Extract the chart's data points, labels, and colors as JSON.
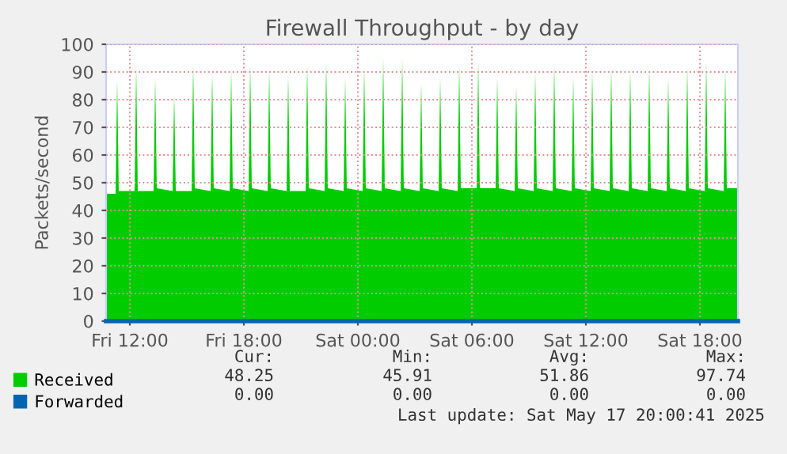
{
  "chart_data": {
    "type": "area",
    "title": "Firewall Throughput - by day",
    "ylabel": "Packets/second",
    "xlim": [
      "2025-05-16T10:45",
      "2025-05-17T20:00"
    ],
    "xticks": [
      {
        "value": "2025-05-16T12:00",
        "label": "Fri 12:00"
      },
      {
        "value": "2025-05-16T18:00",
        "label": "Fri 18:00"
      },
      {
        "value": "2025-05-17T00:00",
        "label": "Sat 00:00"
      },
      {
        "value": "2025-05-17T06:00",
        "label": "Sat 06:00"
      },
      {
        "value": "2025-05-17T12:00",
        "label": "Sat 12:00"
      },
      {
        "value": "2025-05-17T18:00",
        "label": "Sat 18:00"
      }
    ],
    "ylim": [
      0,
      100
    ],
    "yticks": [
      0,
      10,
      20,
      30,
      40,
      50,
      60,
      70,
      80,
      90,
      100
    ],
    "grid": true,
    "legend": "bottom left",
    "series": [
      {
        "name": "Received",
        "color": "#00cc00",
        "x": [
          "2025-05-16T10:45",
          "2025-05-16T11:15",
          "2025-05-16T11:20",
          "2025-05-16T11:25",
          "2025-05-16T12:15",
          "2025-05-16T12:20",
          "2025-05-16T12:25",
          "2025-05-16T13:15",
          "2025-05-16T13:20",
          "2025-05-16T13:25",
          "2025-05-16T14:15",
          "2025-05-16T14:20",
          "2025-05-16T14:25",
          "2025-05-16T15:15",
          "2025-05-16T15:20",
          "2025-05-16T15:25",
          "2025-05-16T16:15",
          "2025-05-16T16:20",
          "2025-05-16T16:25",
          "2025-05-16T17:15",
          "2025-05-16T17:20",
          "2025-05-16T17:25",
          "2025-05-16T18:15",
          "2025-05-16T18:20",
          "2025-05-16T18:25",
          "2025-05-16T19:15",
          "2025-05-16T19:20",
          "2025-05-16T19:25",
          "2025-05-16T20:15",
          "2025-05-16T20:20",
          "2025-05-16T20:25",
          "2025-05-16T21:15",
          "2025-05-16T21:20",
          "2025-05-16T21:25",
          "2025-05-16T22:15",
          "2025-05-16T22:20",
          "2025-05-16T22:25",
          "2025-05-16T23:15",
          "2025-05-16T23:20",
          "2025-05-16T23:25",
          "2025-05-17T00:15",
          "2025-05-17T00:20",
          "2025-05-17T00:25",
          "2025-05-17T01:15",
          "2025-05-17T01:20",
          "2025-05-17T01:25",
          "2025-05-17T02:15",
          "2025-05-17T02:20",
          "2025-05-17T02:25",
          "2025-05-17T03:15",
          "2025-05-17T03:20",
          "2025-05-17T03:25",
          "2025-05-17T04:15",
          "2025-05-17T04:20",
          "2025-05-17T04:25",
          "2025-05-17T05:15",
          "2025-05-17T05:20",
          "2025-05-17T05:25",
          "2025-05-17T06:15",
          "2025-05-17T06:20",
          "2025-05-17T06:25",
          "2025-05-17T07:15",
          "2025-05-17T07:20",
          "2025-05-17T07:25",
          "2025-05-17T08:15",
          "2025-05-17T08:20",
          "2025-05-17T08:25",
          "2025-05-17T09:15",
          "2025-05-17T09:20",
          "2025-05-17T09:25",
          "2025-05-17T10:15",
          "2025-05-17T10:20",
          "2025-05-17T10:25",
          "2025-05-17T11:15",
          "2025-05-17T11:20",
          "2025-05-17T11:25",
          "2025-05-17T12:15",
          "2025-05-17T12:20",
          "2025-05-17T12:25",
          "2025-05-17T13:15",
          "2025-05-17T13:20",
          "2025-05-17T13:25",
          "2025-05-17T14:15",
          "2025-05-17T14:20",
          "2025-05-17T14:25",
          "2025-05-17T15:15",
          "2025-05-17T15:20",
          "2025-05-17T15:25",
          "2025-05-17T16:15",
          "2025-05-17T16:20",
          "2025-05-17T16:25",
          "2025-05-17T17:15",
          "2025-05-17T17:20",
          "2025-05-17T17:25",
          "2025-05-17T18:15",
          "2025-05-17T18:20",
          "2025-05-17T18:25",
          "2025-05-17T19:15",
          "2025-05-17T19:20",
          "2025-05-17T19:25",
          "2025-05-17T20:00"
        ],
        "values": [
          46,
          46,
          87,
          47,
          47,
          92,
          47,
          47,
          88,
          48,
          47,
          82,
          47,
          47,
          93,
          48,
          47,
          90,
          48,
          47,
          91,
          48,
          47,
          93,
          48,
          47,
          91,
          48,
          47,
          89,
          47,
          47,
          93,
          48,
          47,
          94,
          48,
          47,
          88,
          48,
          47,
          92,
          48,
          47,
          95,
          48,
          47,
          95,
          48,
          47,
          86,
          48,
          47,
          88,
          48,
          47,
          93,
          48,
          48,
          94,
          48,
          48,
          88,
          48,
          47,
          85,
          48,
          47,
          90,
          48,
          47,
          93,
          48,
          47,
          88,
          48,
          47,
          91,
          48,
          47,
          92,
          48,
          47,
          91,
          48,
          47,
          92,
          48,
          47,
          88,
          48,
          47,
          92,
          48,
          47,
          94,
          48,
          47,
          91,
          48,
          48
        ]
      },
      {
        "name": "Forwarded",
        "type": "line",
        "color": "#0066b3",
        "x": [
          "2025-05-16T10:45",
          "2025-05-17T20:00"
        ],
        "values": [
          0,
          0
        ]
      }
    ],
    "annotations": [
      "Cur:",
      "Min:",
      "Avg:",
      "Max:",
      "48.25",
      "45.91",
      "51.86",
      "97.74",
      "0.00",
      "0.00",
      "0.00",
      "0.00",
      "Last update: Sat May 17 20:00:41 2025"
    ]
  }
}
